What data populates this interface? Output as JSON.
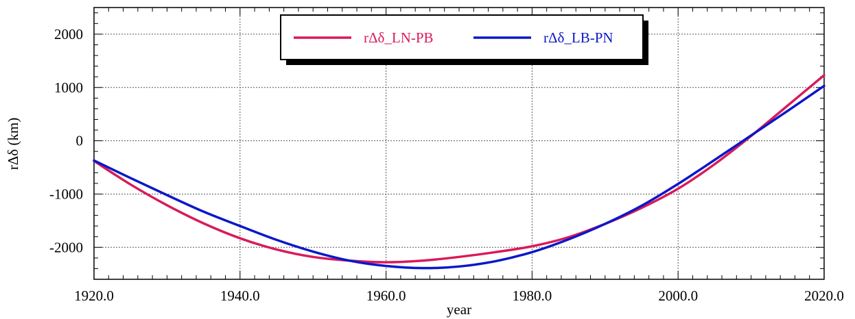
{
  "chart_data": {
    "type": "line",
    "xlabel": "year",
    "ylabel": "rΔδ (km)",
    "xlim": [
      1920,
      2020
    ],
    "ylim": [
      -2600,
      2500
    ],
    "xticks": [
      1920,
      1940,
      1960,
      1980,
      2000,
      2020
    ],
    "xtick_labels": [
      "1920.0",
      "1940.0",
      "1960.0",
      "1980.0",
      "2000.0",
      "2020.0"
    ],
    "yticks": [
      2000,
      1000,
      0,
      -1000,
      -2000
    ],
    "ytick_labels": [
      "2000",
      "1000",
      "0",
      "-1000",
      "-2000"
    ],
    "grid": true,
    "legend_position": "top-center",
    "series": [
      {
        "name": "rΔδ_LN-PB",
        "color": "#d81b5a",
        "x": [
          1920,
          1925,
          1930,
          1935,
          1940,
          1945,
          1950,
          1955,
          1960,
          1965,
          1970,
          1975,
          1980,
          1985,
          1990,
          1995,
          2000,
          2005,
          2010,
          2015,
          2020
        ],
        "y": [
          -380,
          -820,
          -1210,
          -1550,
          -1830,
          -2040,
          -2180,
          -2250,
          -2280,
          -2250,
          -2180,
          -2090,
          -1980,
          -1810,
          -1560,
          -1260,
          -900,
          -440,
          90,
          660,
          1230
        ]
      },
      {
        "name": "rΔδ_LB-PN",
        "color": "#0a18c8",
        "x": [
          1920,
          1925,
          1930,
          1935,
          1940,
          1945,
          1950,
          1955,
          1960,
          1965,
          1970,
          1975,
          1980,
          1985,
          1990,
          1995,
          2000,
          2005,
          2010,
          2015,
          2020
        ],
        "y": [
          -370,
          -700,
          -1020,
          -1330,
          -1600,
          -1860,
          -2080,
          -2250,
          -2350,
          -2390,
          -2360,
          -2260,
          -2090,
          -1850,
          -1560,
          -1220,
          -810,
          -360,
          100,
          560,
          1030
        ]
      }
    ]
  }
}
